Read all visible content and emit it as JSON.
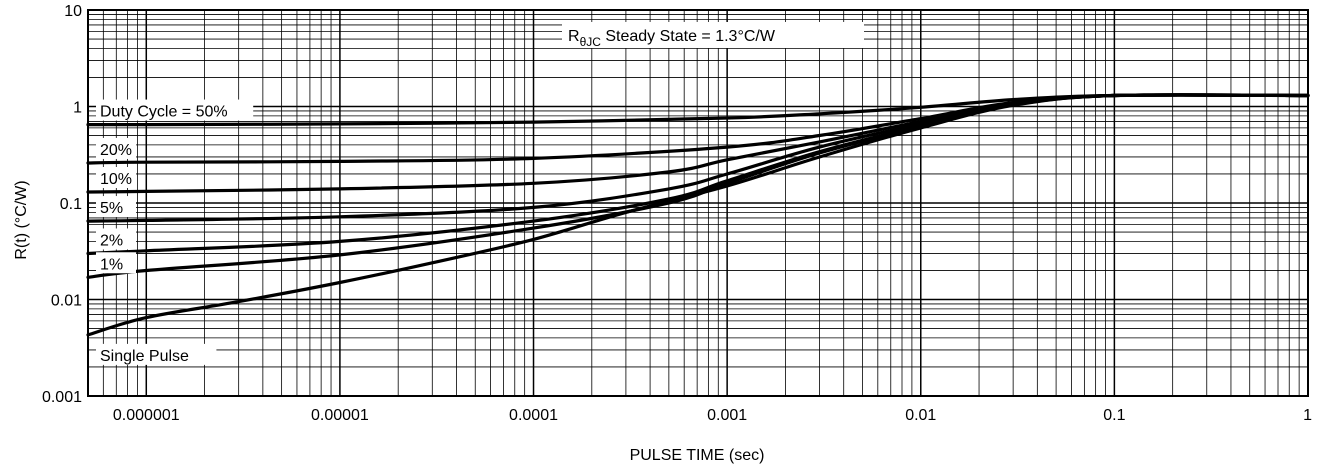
{
  "chart_data": {
    "type": "line",
    "x_scale": "log",
    "y_scale": "log",
    "xlim": [
      5e-07,
      1
    ],
    "ylim": [
      0.001,
      10
    ],
    "grid": true,
    "xlabel": "PULSE TIME (sec)",
    "ylabel": "R(t) (°C/W)",
    "x_ticks": [
      1e-06,
      1e-05,
      0.0001,
      0.001,
      0.01,
      0.1,
      1
    ],
    "x_tick_labels": [
      "0.000001",
      "0.00001",
      "0.0001",
      "0.001",
      "0.01",
      "0.1",
      "1"
    ],
    "y_ticks": [
      0.001,
      0.01,
      0.1,
      1,
      10
    ],
    "y_tick_labels": [
      "0.001",
      "0.01",
      "0.1",
      "1",
      "10"
    ],
    "annotation": {
      "main": "R",
      "subscript": "θJC",
      "rest": " Steady State = 1.3°C/W"
    },
    "series": [
      {
        "name": "Duty Cycle = 50%",
        "x": [
          5e-07,
          1e-06,
          1e-05,
          0.0001,
          0.001,
          0.003,
          0.01,
          0.03,
          0.1,
          1
        ],
        "y": [
          0.65,
          0.65,
          0.66,
          0.69,
          0.76,
          0.84,
          0.98,
          1.18,
          1.3,
          1.3
        ]
      },
      {
        "name": "20%",
        "x": [
          5e-07,
          1e-06,
          1e-05,
          0.0001,
          0.001,
          0.003,
          0.01,
          0.03,
          0.1,
          1
        ],
        "y": [
          0.26,
          0.265,
          0.27,
          0.29,
          0.38,
          0.5,
          0.75,
          1.1,
          1.3,
          1.3
        ]
      },
      {
        "name": "10%",
        "x": [
          5e-07,
          1e-06,
          1e-05,
          0.0001,
          0.0005,
          0.001,
          0.003,
          0.01,
          0.03,
          0.1,
          1
        ],
        "y": [
          0.13,
          0.132,
          0.14,
          0.16,
          0.21,
          0.28,
          0.43,
          0.7,
          1.08,
          1.3,
          1.3
        ]
      },
      {
        "name": "5%",
        "x": [
          5e-07,
          1e-06,
          1e-05,
          0.0001,
          0.0005,
          0.001,
          0.003,
          0.01,
          0.03,
          0.1,
          1
        ],
        "y": [
          0.065,
          0.066,
          0.072,
          0.09,
          0.14,
          0.2,
          0.38,
          0.66,
          1.07,
          1.3,
          1.3
        ]
      },
      {
        "name": "2%",
        "x": [
          5e-07,
          1e-06,
          1e-05,
          0.0001,
          0.0005,
          0.001,
          0.003,
          0.01,
          0.03,
          0.1,
          1
        ],
        "y": [
          0.03,
          0.032,
          0.04,
          0.065,
          0.11,
          0.17,
          0.34,
          0.63,
          1.05,
          1.3,
          1.3
        ]
      },
      {
        "name": "1%",
        "x": [
          5e-07,
          1e-06,
          1e-05,
          0.0001,
          0.0005,
          0.001,
          0.003,
          0.01,
          0.03,
          0.1,
          1
        ],
        "y": [
          0.017,
          0.02,
          0.029,
          0.055,
          0.1,
          0.16,
          0.33,
          0.62,
          1.04,
          1.3,
          1.3
        ]
      },
      {
        "name": "Single Pulse",
        "x": [
          5e-07,
          1e-06,
          3e-06,
          1e-05,
          3e-05,
          0.0001,
          0.0003,
          0.001,
          0.003,
          0.01,
          0.03,
          0.1,
          1
        ],
        "y": [
          0.0043,
          0.0065,
          0.0095,
          0.015,
          0.024,
          0.042,
          0.08,
          0.15,
          0.3,
          0.6,
          1.03,
          1.3,
          1.3
        ]
      }
    ]
  }
}
